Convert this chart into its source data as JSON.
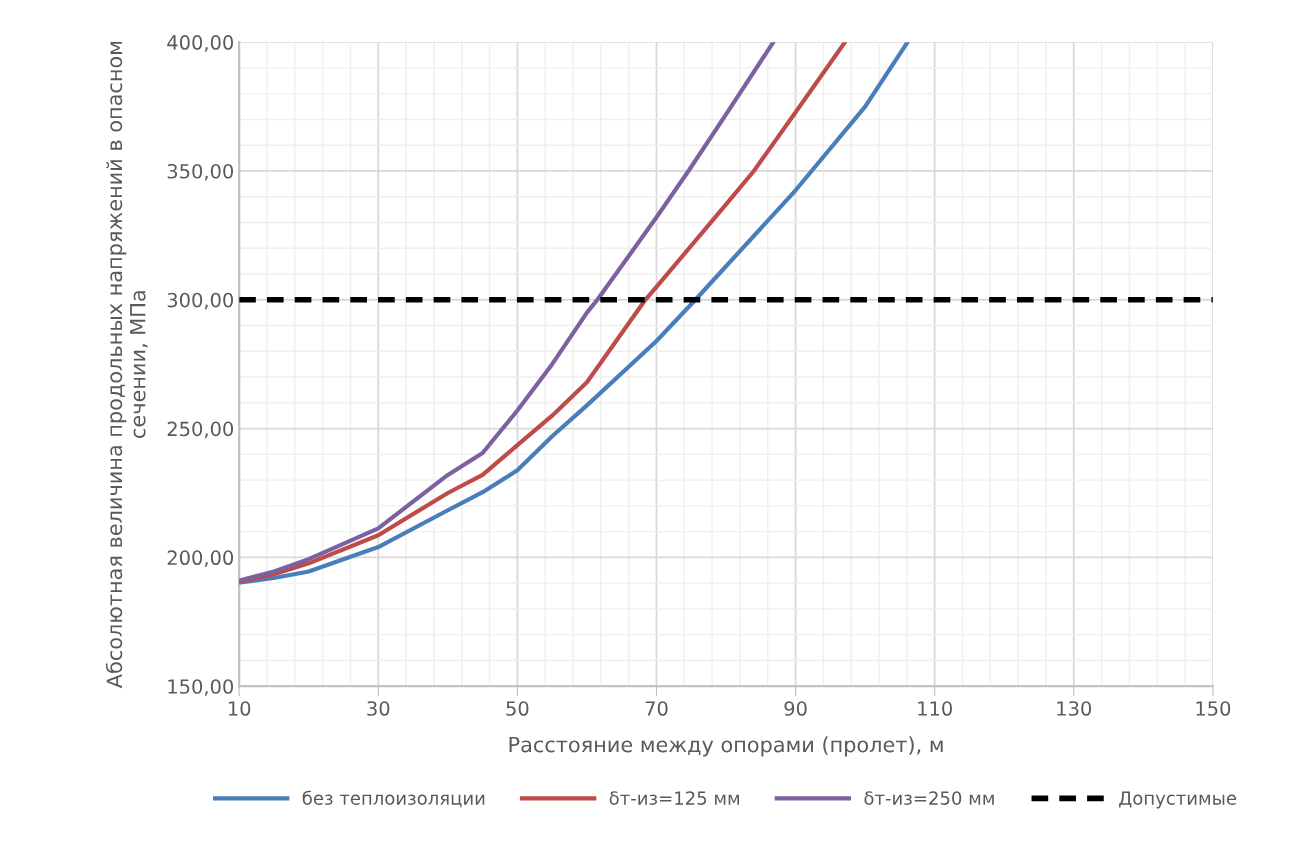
{
  "chart_data": {
    "type": "line",
    "xlabel": "Расстояние между опорами (пролет), м",
    "ylabel": "Абсолютная величина продольных напряжений в опасном сечении, МПа",
    "xlim": [
      10,
      150
    ],
    "xticks": [
      10,
      30,
      50,
      70,
      90,
      110,
      130,
      150
    ],
    "ylim": [
      150,
      400
    ],
    "yticks": [
      {
        "value": 150,
        "label": "150,00"
      },
      {
        "value": 200,
        "label": "200,00"
      },
      {
        "value": 250,
        "label": "250,00"
      },
      {
        "value": 300,
        "label": "300,00"
      },
      {
        "value": 350,
        "label": "350,00"
      },
      {
        "value": 400,
        "label": "400,00"
      }
    ],
    "grid": true,
    "legend": "bottom",
    "marker": "none",
    "series": [
      {
        "name": "без теплоизоляции",
        "color": "#4a7ebb",
        "x": [
          10,
          15,
          20,
          30,
          40,
          45,
          50,
          55,
          60,
          70,
          75.6,
          80,
          90,
          100,
          106.1
        ],
        "values": [
          190.2,
          192,
          194.5,
          204,
          218.3,
          225.3,
          233.8,
          247,
          259,
          284,
          300,
          313,
          342.5,
          375,
          400
        ]
      },
      {
        "name": "δт-из=125 мм",
        "color": "#be4b48",
        "x": [
          10,
          15,
          20,
          30,
          40,
          45,
          50,
          55,
          60,
          68.4,
          70,
          80,
          84,
          90,
          97.1
        ],
        "values": [
          190.6,
          193.5,
          197.7,
          208.6,
          225,
          232,
          243.6,
          255,
          268,
          300,
          305,
          337,
          350,
          372.8,
          400
        ]
      },
      {
        "name": "δт-из=250 мм",
        "color": "#7d60a0",
        "x": [
          10,
          15,
          20,
          30,
          40,
          45,
          50,
          55,
          60,
          61.5,
          70,
          74.6,
          80,
          86.8
        ],
        "values": [
          191,
          194.5,
          199.3,
          211.3,
          232,
          240.5,
          257,
          275,
          295,
          300,
          332,
          350,
          372,
          400
        ]
      },
      {
        "name": "Допустимые",
        "color": "#000000",
        "line_style": "dashed",
        "x": [
          10,
          150
        ],
        "values": [
          300,
          300
        ]
      }
    ]
  }
}
